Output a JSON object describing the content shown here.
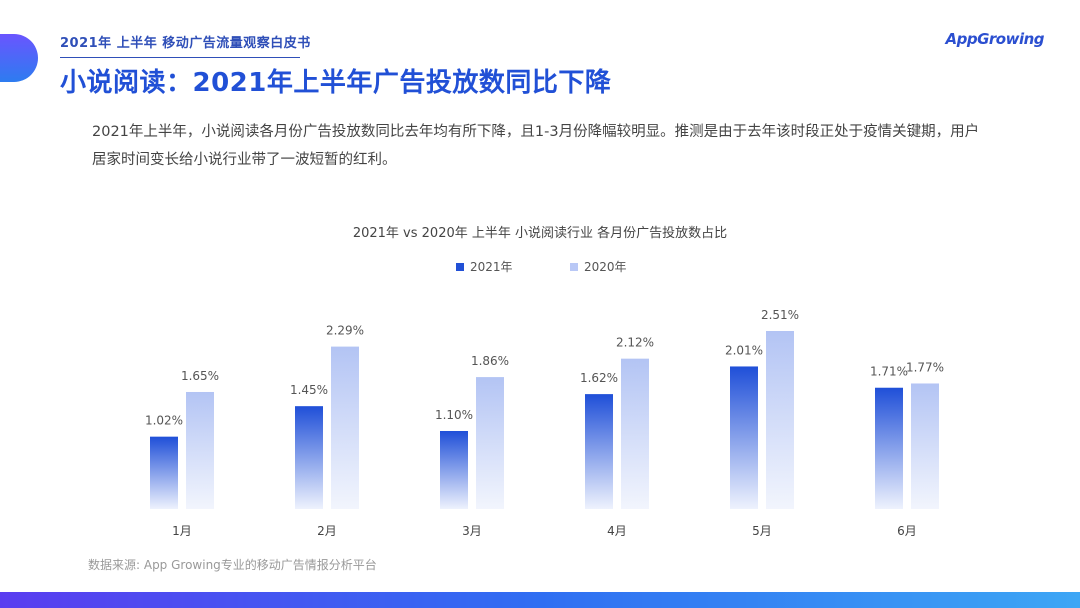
{
  "header": {
    "report_title": "2021年 上半年 移动广告流量观察白皮书",
    "logo_text": "AppGrowing"
  },
  "page_title": "小说阅读：2021年上半年广告投放数同比下降",
  "description": "2021年上半年，小说阅读各月份广告投放数同比去年均有所下降，且1-3月份降幅较明显。推测是由于去年该时段正处于疫情关键期，用户居家时间变长给小说行业带了一波短暂的红利。",
  "colors": {
    "series_2021_top": "#1f4fd8",
    "series_2021_bottom": "#eef2fd",
    "series_2020_top": "#b3c4f4",
    "series_2020_bottom": "#f2f5fd",
    "accent": "#2150d6"
  },
  "chart_data": {
    "type": "bar",
    "title": "2021年 vs 2020年 上半年 小说阅读行业 各月份广告投放数占比",
    "categories": [
      "1月",
      "2月",
      "3月",
      "4月",
      "5月",
      "6月"
    ],
    "series": [
      {
        "name": "2021年",
        "values": [
          1.02,
          1.45,
          1.1,
          1.62,
          2.01,
          1.71
        ],
        "labels": [
          "1.02%",
          "1.45%",
          "1.10%",
          "1.62%",
          "2.01%",
          "1.71%"
        ]
      },
      {
        "name": "2020年",
        "values": [
          1.65,
          2.29,
          1.86,
          2.12,
          2.51,
          1.77
        ],
        "labels": [
          "1.65%",
          "2.29%",
          "1.86%",
          "2.12%",
          "2.51%",
          "1.77%"
        ]
      }
    ],
    "ylim": [
      0,
      2.6
    ],
    "legend_position": "top-center",
    "grid": false
  },
  "footer": {
    "source": "数据来源: App Growing专业的移动广告情报分析平台"
  }
}
